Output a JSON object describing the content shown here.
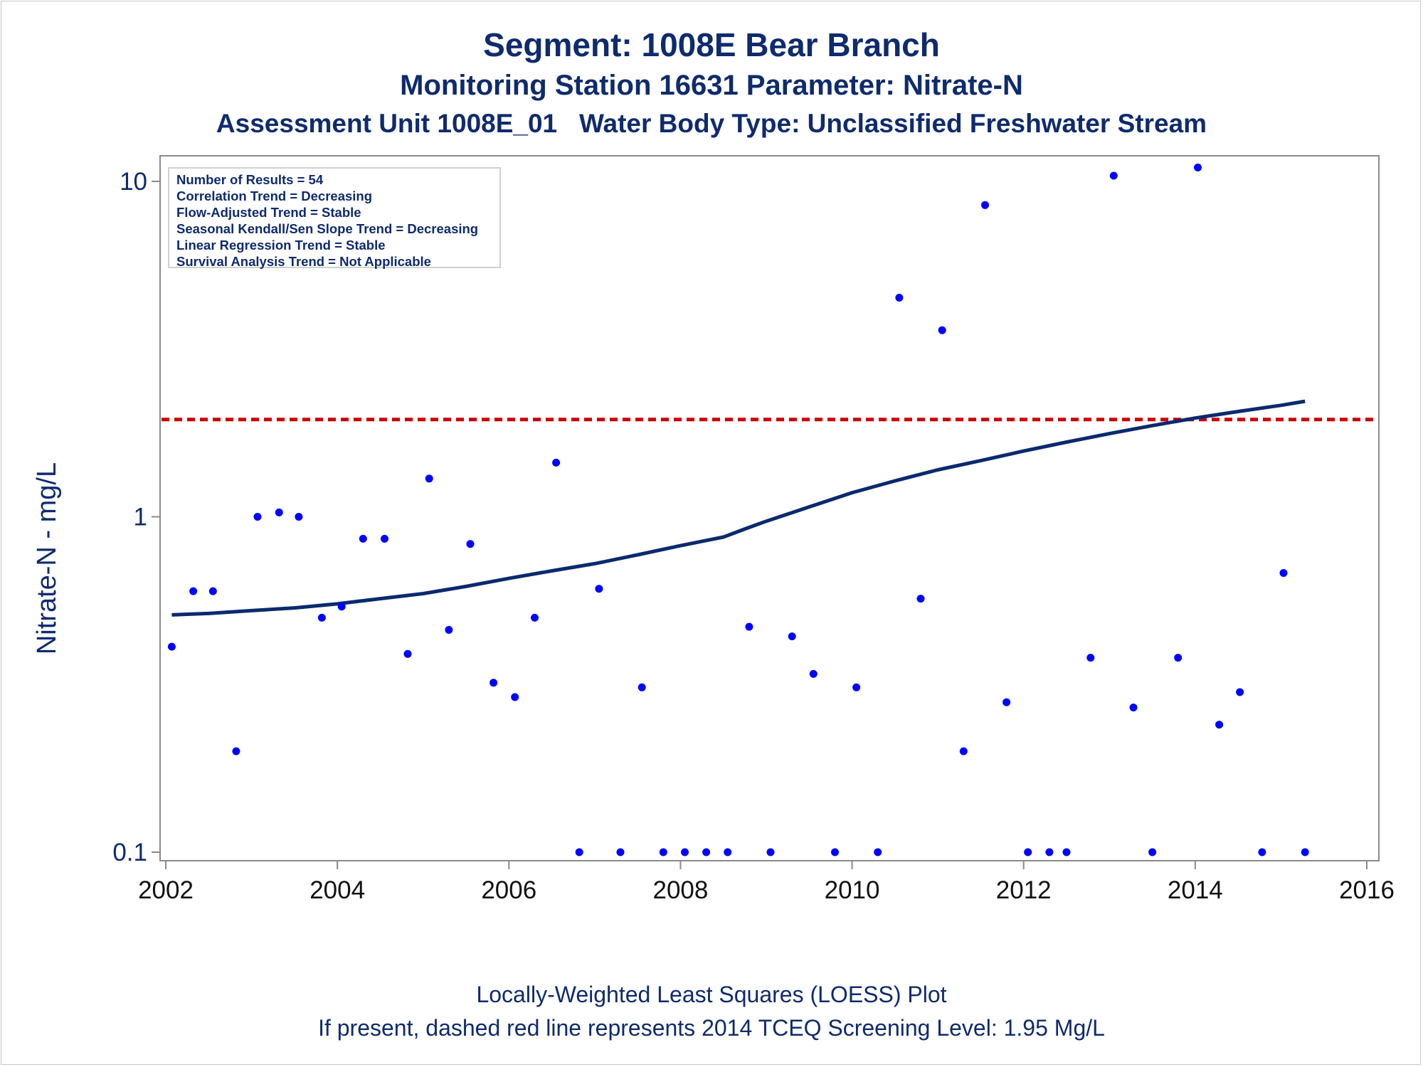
{
  "chart_data": {
    "type": "scatter",
    "title": "Segment: 1008E  Bear Branch",
    "subtitle": "Monitoring Station 16631 Parameter: Nitrate-N",
    "subtitle2": "Assessment Unit 1008E_01   Water Body Type: Unclassified Freshwater Stream",
    "ylabel": "Nitrate-N - mg/L",
    "xlabel": "",
    "yscale": "log",
    "ylim": [
      0.1,
      10
    ],
    "xlim": [
      2002,
      2016
    ],
    "xticks": [
      "2002",
      "2004",
      "2006",
      "2008",
      "2010",
      "2012",
      "2014",
      "2016"
    ],
    "yticks": [
      "0.1",
      "1",
      "10"
    ],
    "reference_line": {
      "y": 1.95,
      "style": "dashed",
      "color": "#cc0000"
    },
    "stats": [
      "Number of Results = 54",
      "Correlation Trend = Decreasing",
      "Flow-Adjusted Trend = Stable",
      "Seasonal Kendall/Sen Slope Trend = Decreasing",
      "Linear Regression Trend = Stable",
      "Survival Analysis Trend = Not Applicable"
    ],
    "points": [
      [
        2002.07,
        0.41
      ],
      [
        2002.32,
        0.6
      ],
      [
        2002.55,
        0.6
      ],
      [
        2002.82,
        0.2
      ],
      [
        2003.07,
        1.0
      ],
      [
        2003.32,
        1.03
      ],
      [
        2003.55,
        1.0
      ],
      [
        2003.82,
        0.5
      ],
      [
        2004.05,
        0.54
      ],
      [
        2004.3,
        0.86
      ],
      [
        2004.55,
        0.86
      ],
      [
        2004.82,
        0.39
      ],
      [
        2005.07,
        1.3
      ],
      [
        2005.3,
        0.46
      ],
      [
        2005.55,
        0.83
      ],
      [
        2005.82,
        0.32
      ],
      [
        2006.07,
        0.29
      ],
      [
        2006.3,
        0.5
      ],
      [
        2006.55,
        1.45
      ],
      [
        2006.82,
        0.1
      ],
      [
        2007.05,
        0.61
      ],
      [
        2007.3,
        0.1
      ],
      [
        2007.55,
        0.31
      ],
      [
        2007.8,
        0.1
      ],
      [
        2008.05,
        0.1
      ],
      [
        2008.3,
        0.1
      ],
      [
        2008.55,
        0.1
      ],
      [
        2008.8,
        0.47
      ],
      [
        2009.05,
        0.1
      ],
      [
        2009.3,
        0.44
      ],
      [
        2009.55,
        0.34
      ],
      [
        2009.8,
        0.1
      ],
      [
        2010.05,
        0.31
      ],
      [
        2010.3,
        0.1
      ],
      [
        2010.55,
        4.5
      ],
      [
        2010.8,
        0.57
      ],
      [
        2011.05,
        3.6
      ],
      [
        2011.3,
        0.2
      ],
      [
        2011.55,
        8.5
      ],
      [
        2011.8,
        0.28
      ],
      [
        2012.05,
        0.1
      ],
      [
        2012.3,
        0.1
      ],
      [
        2012.5,
        0.1
      ],
      [
        2012.78,
        0.38
      ],
      [
        2013.05,
        10.4
      ],
      [
        2013.28,
        0.27
      ],
      [
        2013.5,
        0.1
      ],
      [
        2013.8,
        0.38
      ],
      [
        2014.03,
        11.0
      ],
      [
        2014.28,
        0.24
      ],
      [
        2014.52,
        0.3
      ],
      [
        2014.78,
        0.1
      ],
      [
        2015.03,
        0.68
      ],
      [
        2015.28,
        0.1
      ]
    ],
    "loess": [
      [
        2002.07,
        0.51
      ],
      [
        2002.5,
        0.515
      ],
      [
        2003.0,
        0.525
      ],
      [
        2003.5,
        0.535
      ],
      [
        2004.0,
        0.55
      ],
      [
        2004.5,
        0.57
      ],
      [
        2005.0,
        0.59
      ],
      [
        2005.5,
        0.62
      ],
      [
        2006.0,
        0.655
      ],
      [
        2006.5,
        0.69
      ],
      [
        2007.0,
        0.725
      ],
      [
        2007.5,
        0.77
      ],
      [
        2008.0,
        0.82
      ],
      [
        2008.5,
        0.87
      ],
      [
        2008.75,
        0.92
      ],
      [
        2009.0,
        0.97
      ],
      [
        2009.5,
        1.07
      ],
      [
        2010.0,
        1.18
      ],
      [
        2010.5,
        1.28
      ],
      [
        2011.0,
        1.38
      ],
      [
        2011.5,
        1.47
      ],
      [
        2012.0,
        1.57
      ],
      [
        2012.5,
        1.67
      ],
      [
        2013.0,
        1.77
      ],
      [
        2013.5,
        1.87
      ],
      [
        2014.0,
        1.97
      ],
      [
        2014.5,
        2.06
      ],
      [
        2015.0,
        2.15
      ],
      [
        2015.28,
        2.21
      ]
    ],
    "colors": {
      "points": "#0000ff",
      "loess": "#0a2a6e",
      "reference": "#cc0000",
      "text": "#0f2b6e",
      "axis": "#8a8a8a"
    }
  },
  "footnote1": "Locally-Weighted Least Squares (LOESS) Plot",
  "footnote2": "If present, dashed red line represents 2014 TCEQ Screening Level: 1.95 Mg/L"
}
